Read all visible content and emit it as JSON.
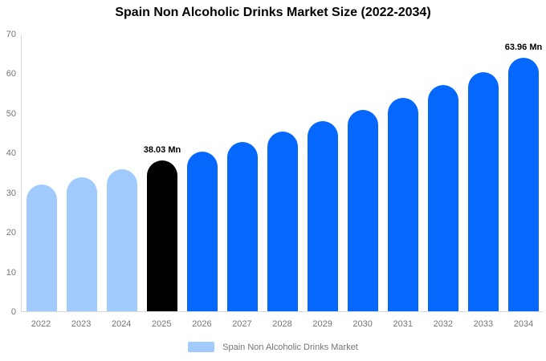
{
  "chart_data": {
    "type": "bar",
    "title": "Spain Non Alcoholic Drinks Market Size (2022-2034)",
    "categories": [
      "2022",
      "2023",
      "2024",
      "2025",
      "2026",
      "2027",
      "2028",
      "2029",
      "2030",
      "2031",
      "2032",
      "2033",
      "2034"
    ],
    "values": [
      31.98,
      33.89,
      35.91,
      38.03,
      40.29,
      42.69,
      45.23,
      47.92,
      50.77,
      53.79,
      56.99,
      60.38,
      63.96
    ],
    "unit": "Mn",
    "bar_colors": [
      "#A0CBFC",
      "#A0CBFC",
      "#A0CBFC",
      "#000000",
      "#0667FD",
      "#0667FD",
      "#0667FD",
      "#0667FD",
      "#0667FD",
      "#0667FD",
      "#0667FD",
      "#0667FD",
      "#0667FD"
    ],
    "data_labels": [
      {
        "category": "2025",
        "text": "38.03 Mn"
      },
      {
        "category": "2034",
        "text": "63.96 Mn"
      }
    ],
    "xlabel": "",
    "ylabel": "",
    "ylim": [
      0,
      70
    ],
    "yticks": [
      0,
      10,
      20,
      30,
      40,
      50,
      60,
      70
    ],
    "grid": false,
    "legend": {
      "position": "bottom",
      "entries": [
        {
          "label": "Spain Non Alcoholic Drinks Market",
          "color": "#A0CBFC"
        }
      ]
    }
  },
  "colors": {
    "background": "#ffffff",
    "axis_line": "#d9d9d9",
    "tick_text": "#757575",
    "title_text": "#000000",
    "value_label_text": "#000000"
  }
}
